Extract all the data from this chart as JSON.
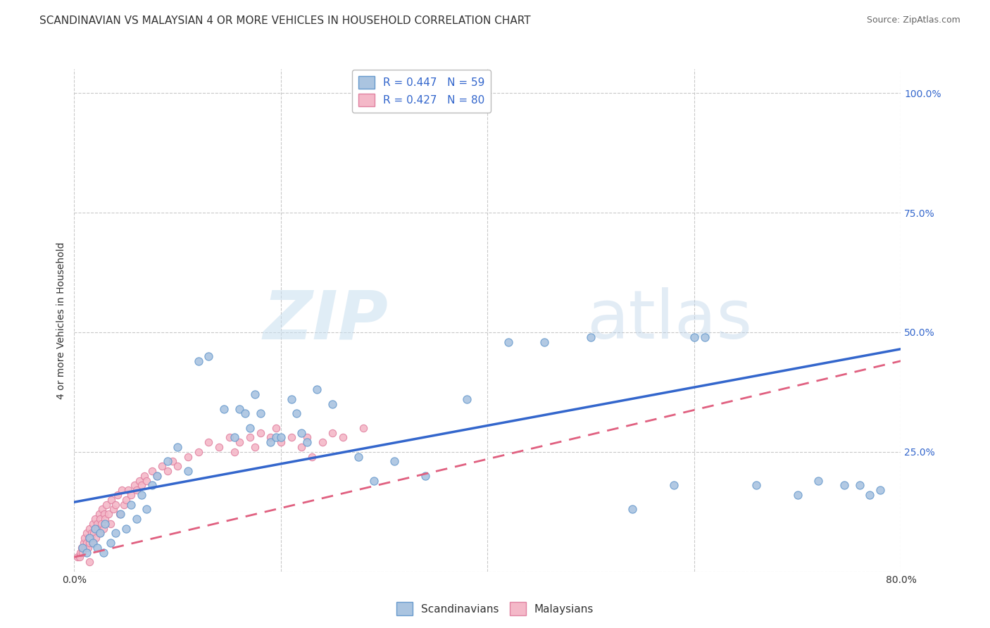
{
  "title": "SCANDINAVIAN VS MALAYSIAN 4 OR MORE VEHICLES IN HOUSEHOLD CORRELATION CHART",
  "source": "Source: ZipAtlas.com",
  "ylabel": "4 or more Vehicles in Household",
  "xlim": [
    0.0,
    0.8
  ],
  "ylim": [
    0.0,
    1.05
  ],
  "xticks": [
    0.0,
    0.2,
    0.4,
    0.6,
    0.8
  ],
  "yticks": [
    0.0,
    0.25,
    0.5,
    0.75,
    1.0
  ],
  "xticklabels": [
    "0.0%",
    "",
    "",
    "",
    "80.0%"
  ],
  "yticklabels_right": [
    "",
    "25.0%",
    "50.0%",
    "75.0%",
    "100.0%"
  ],
  "legend_entry_labels": [
    "Scandinavians",
    "Malaysians"
  ],
  "legend_entry_colors": [
    "#aac4e0",
    "#f4b8c8"
  ],
  "background_color": "#ffffff",
  "grid_color": "#bbbbbb",
  "scatter_blue_color": "#aac4e0",
  "scatter_pink_color": "#f4b8c8",
  "scatter_blue_edge": "#6699cc",
  "scatter_pink_edge": "#e080a0",
  "line_blue_color": "#3366cc",
  "line_pink_color": "#e06080",
  "title_fontsize": 11,
  "axis_label_fontsize": 10,
  "tick_fontsize": 10,
  "legend_fontsize": 11,
  "blue_line_x0": 0.0,
  "blue_line_y0": 0.145,
  "blue_line_x1": 0.8,
  "blue_line_y1": 0.465,
  "pink_line_x0": 0.0,
  "pink_line_y0": 0.03,
  "pink_line_x1": 0.8,
  "pink_line_y1": 0.44,
  "scand_x": [
    0.008,
    0.012,
    0.015,
    0.018,
    0.02,
    0.022,
    0.025,
    0.028,
    0.03,
    0.035,
    0.04,
    0.045,
    0.05,
    0.055,
    0.06,
    0.065,
    0.07,
    0.075,
    0.08,
    0.09,
    0.1,
    0.11,
    0.12,
    0.13,
    0.145,
    0.155,
    0.16,
    0.165,
    0.17,
    0.175,
    0.18,
    0.19,
    0.195,
    0.2,
    0.21,
    0.215,
    0.22,
    0.225,
    0.235,
    0.25,
    0.275,
    0.29,
    0.31,
    0.34,
    0.38,
    0.42,
    0.455,
    0.5,
    0.54,
    0.58,
    0.6,
    0.61,
    0.66,
    0.7,
    0.72,
    0.745,
    0.76,
    0.77,
    0.78
  ],
  "scand_y": [
    0.05,
    0.04,
    0.07,
    0.06,
    0.09,
    0.05,
    0.08,
    0.04,
    0.1,
    0.06,
    0.08,
    0.12,
    0.09,
    0.14,
    0.11,
    0.16,
    0.13,
    0.18,
    0.2,
    0.23,
    0.26,
    0.21,
    0.44,
    0.45,
    0.34,
    0.28,
    0.34,
    0.33,
    0.3,
    0.37,
    0.33,
    0.27,
    0.28,
    0.28,
    0.36,
    0.33,
    0.29,
    0.27,
    0.38,
    0.35,
    0.24,
    0.19,
    0.23,
    0.2,
    0.36,
    0.48,
    0.48,
    0.49,
    0.13,
    0.18,
    0.49,
    0.49,
    0.18,
    0.16,
    0.19,
    0.18,
    0.18,
    0.16,
    0.17
  ],
  "malay_x": [
    0.003,
    0.005,
    0.006,
    0.007,
    0.008,
    0.009,
    0.01,
    0.01,
    0.011,
    0.012,
    0.012,
    0.013,
    0.014,
    0.015,
    0.015,
    0.016,
    0.017,
    0.018,
    0.018,
    0.019,
    0.02,
    0.02,
    0.021,
    0.022,
    0.023,
    0.024,
    0.025,
    0.025,
    0.026,
    0.027,
    0.028,
    0.029,
    0.03,
    0.031,
    0.033,
    0.035,
    0.036,
    0.038,
    0.04,
    0.042,
    0.044,
    0.046,
    0.048,
    0.05,
    0.052,
    0.055,
    0.058,
    0.06,
    0.063,
    0.065,
    0.068,
    0.07,
    0.075,
    0.08,
    0.085,
    0.09,
    0.095,
    0.1,
    0.11,
    0.12,
    0.13,
    0.14,
    0.15,
    0.155,
    0.16,
    0.17,
    0.175,
    0.18,
    0.19,
    0.195,
    0.2,
    0.21,
    0.22,
    0.225,
    0.23,
    0.24,
    0.25,
    0.26,
    0.28,
    0.015
  ],
  "malay_y": [
    0.03,
    0.03,
    0.04,
    0.05,
    0.04,
    0.06,
    0.05,
    0.07,
    0.05,
    0.06,
    0.08,
    0.05,
    0.07,
    0.06,
    0.09,
    0.07,
    0.08,
    0.06,
    0.1,
    0.08,
    0.09,
    0.11,
    0.07,
    0.1,
    0.09,
    0.12,
    0.08,
    0.11,
    0.1,
    0.13,
    0.09,
    0.12,
    0.11,
    0.14,
    0.12,
    0.1,
    0.15,
    0.13,
    0.14,
    0.16,
    0.12,
    0.17,
    0.14,
    0.15,
    0.17,
    0.16,
    0.18,
    0.17,
    0.19,
    0.18,
    0.2,
    0.19,
    0.21,
    0.2,
    0.22,
    0.21,
    0.23,
    0.22,
    0.24,
    0.25,
    0.27,
    0.26,
    0.28,
    0.25,
    0.27,
    0.28,
    0.26,
    0.29,
    0.28,
    0.3,
    0.27,
    0.28,
    0.26,
    0.28,
    0.24,
    0.27,
    0.29,
    0.28,
    0.3,
    0.02
  ]
}
